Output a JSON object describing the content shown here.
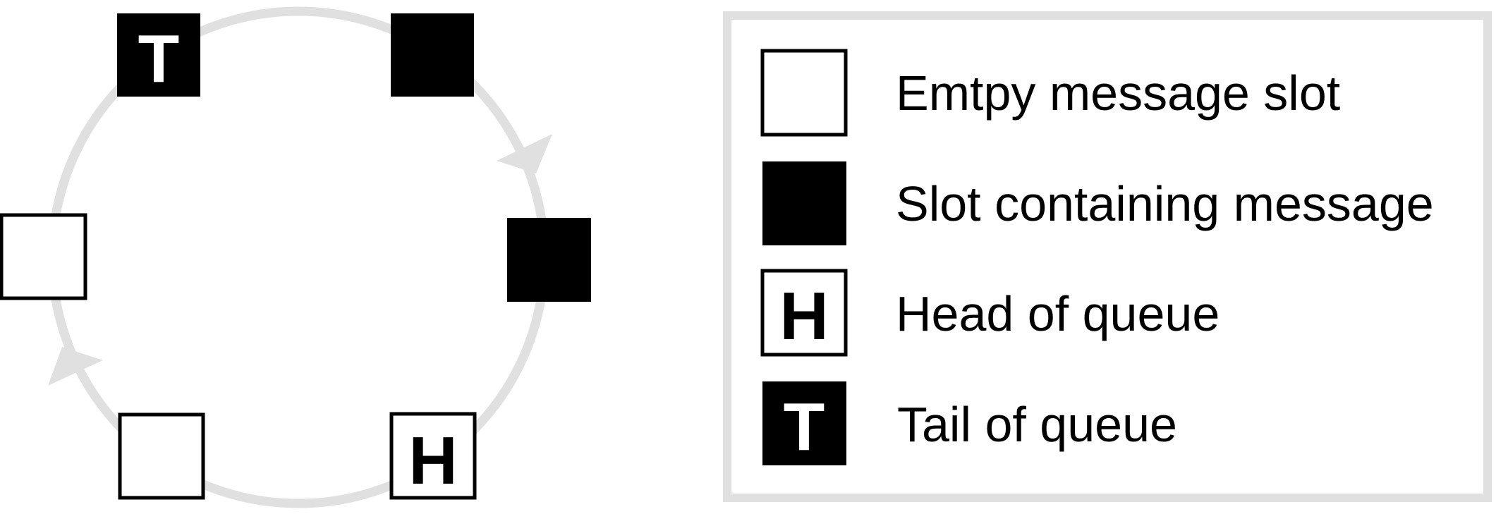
{
  "ring": {
    "slots": [
      {
        "id": "slot-top-left",
        "kind": "tail"
      },
      {
        "id": "slot-top-right",
        "kind": "filled"
      },
      {
        "id": "slot-right",
        "kind": "filled"
      },
      {
        "id": "slot-bottom-right",
        "kind": "head"
      },
      {
        "id": "slot-bottom-left",
        "kind": "empty"
      },
      {
        "id": "slot-left",
        "kind": "empty"
      }
    ],
    "direction": "clockwise",
    "ring_color": "#e0e0e0"
  },
  "labels": {
    "head_letter": "H",
    "tail_letter": "T"
  },
  "legend": {
    "items": [
      {
        "kind": "empty",
        "label": "Emtpy message slot"
      },
      {
        "kind": "filled",
        "label": "Slot containing message"
      },
      {
        "kind": "head",
        "label": "Head of queue"
      },
      {
        "kind": "tail",
        "label": "Tail of queue"
      }
    ],
    "border_color": "#e0e0e0"
  }
}
